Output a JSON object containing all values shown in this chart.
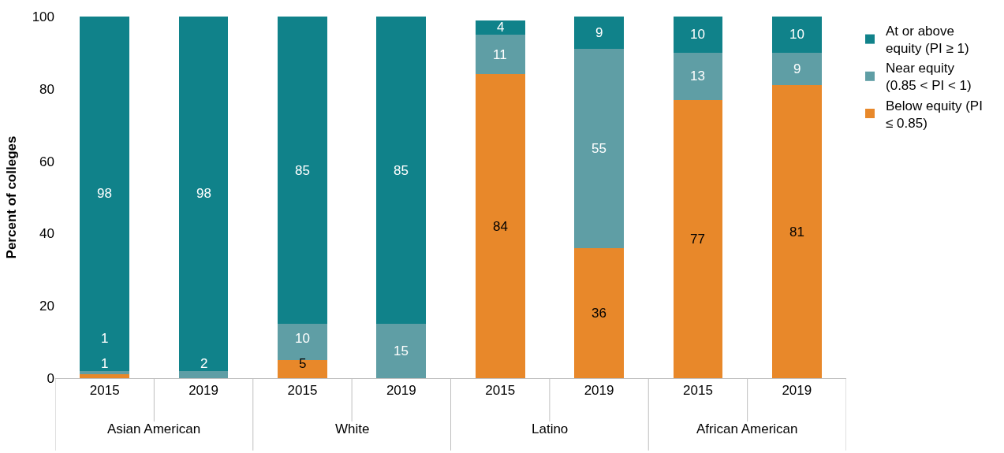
{
  "chart_data": {
    "type": "bar",
    "stacked": true,
    "ylabel": "Percent of colleges",
    "categories": [
      "2015",
      "2019",
      "2015",
      "2019",
      "2015",
      "2019",
      "2015",
      "2019"
    ],
    "annotations": [
      "Asian American",
      "White",
      "Latino",
      "African American"
    ],
    "series": [
      {
        "name": "Below equity (PI ≤ 0.85)",
        "color": "#e8882a",
        "values": [
          1,
          0,
          5,
          0,
          84,
          36,
          77,
          81
        ],
        "value_labels": [
          "1",
          null,
          "5",
          null,
          "84",
          "36",
          "77",
          "81"
        ]
      },
      {
        "name": "Near equity (0.85 < PI < 1)",
        "color": "#5f9ea5",
        "values": [
          1,
          2,
          10,
          15,
          11,
          55,
          13,
          9
        ],
        "value_labels": [
          "1",
          "2",
          "10",
          "15",
          "11",
          "55",
          "13",
          "9"
        ]
      },
      {
        "name": "At or above equity (PI ≥ 1)",
        "color": "#10828a",
        "values": [
          98,
          98,
          85,
          85,
          4,
          9,
          10,
          10
        ],
        "value_labels": [
          "98",
          "98",
          "85",
          "85",
          "4",
          "9",
          "10",
          "10"
        ]
      }
    ],
    "ylim": [
      0,
      100
    ],
    "yticks": [
      0,
      20,
      40,
      60,
      80,
      100
    ],
    "legend": "right"
  }
}
